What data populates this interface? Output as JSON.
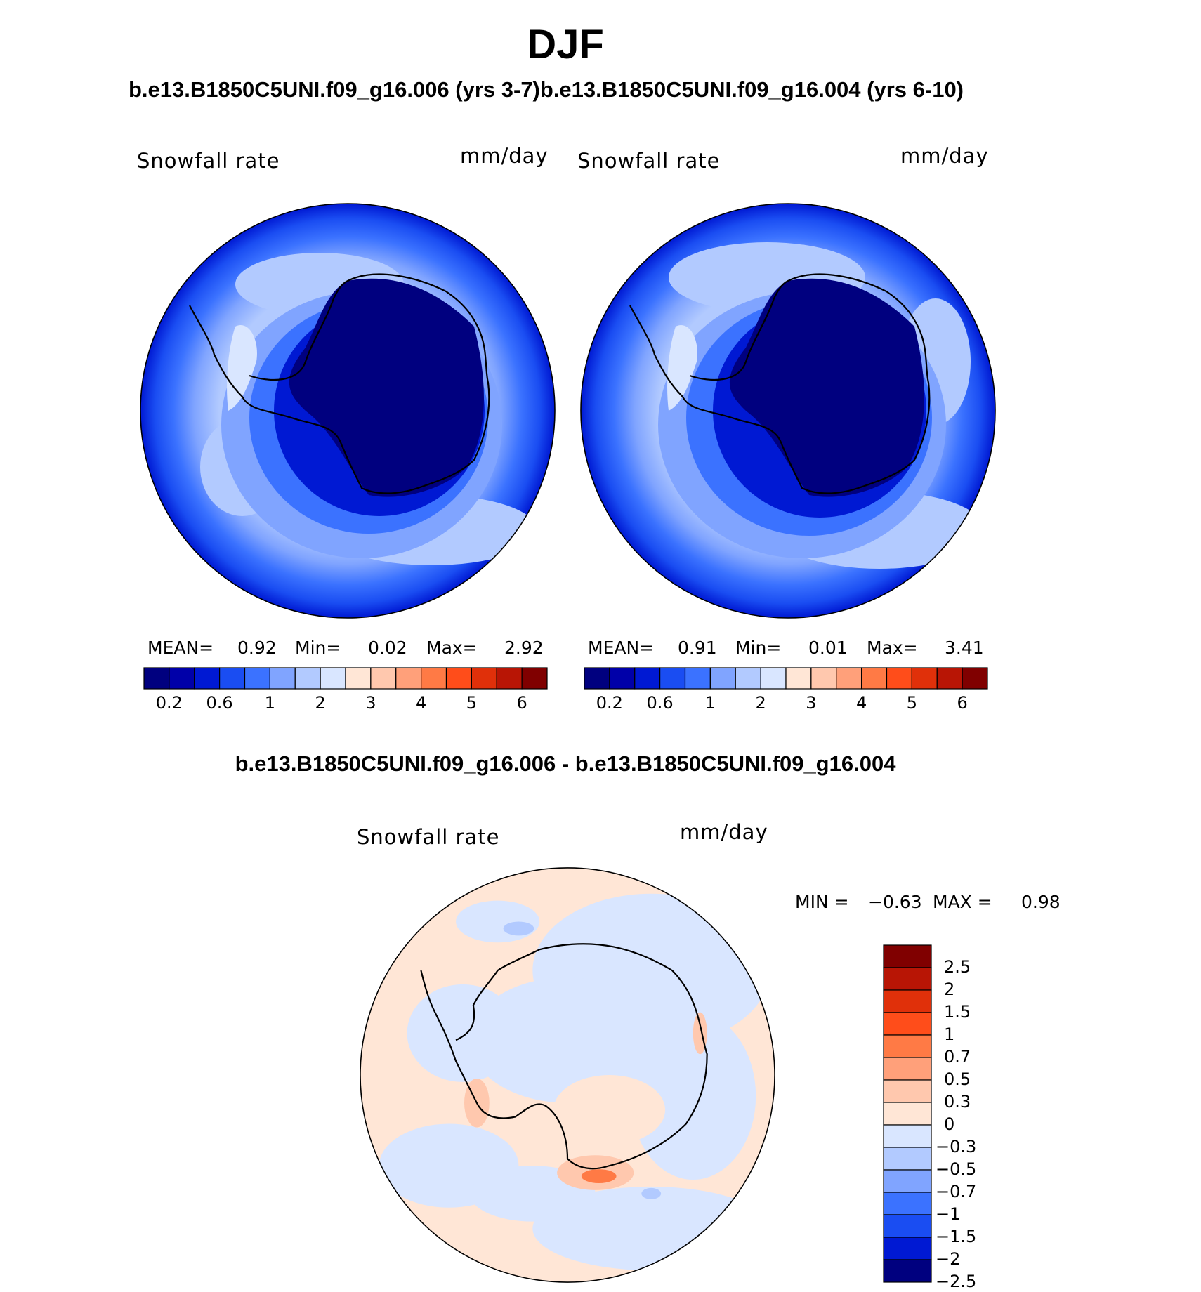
{
  "figure": {
    "title": "DJF",
    "subtitle": "b.e13.B1850C5UNI.f09_g16.006 (yrs 3-7)b.e13.B1850C5UNI.f09_g16.004 (yrs 6-10)",
    "diff_title": "b.e13.B1850C5UNI.f09_g16.006 - b.e13.B1850C5UNI.f09_g16.004"
  },
  "panels": [
    {
      "variable": "Snowfall rate",
      "units": "mm/day",
      "mean_label": "MEAN=",
      "mean": "0.92",
      "min_label": "Min=",
      "min": "0.02",
      "max_label": "Max=",
      "max": "2.92"
    },
    {
      "variable": "Snowfall rate",
      "units": "mm/day",
      "mean_label": "MEAN=",
      "mean": "0.91",
      "min_label": "Min=",
      "min": "0.01",
      "max_label": "Max=",
      "max": "3.41"
    }
  ],
  "diff_panel": {
    "variable": "Snowfall rate",
    "units": "mm/day",
    "min_label": "MIN =",
    "min": "−0.63",
    "max_label": "MAX =",
    "max": "0.98"
  },
  "colorbar_top": {
    "colors": [
      "#00007f",
      "#0000a9",
      "#0019d3",
      "#1a4df2",
      "#3b72ff",
      "#80a4ff",
      "#b2caff",
      "#d9e6ff",
      "#ffe6d6",
      "#ffc8ae",
      "#ffa07a",
      "#ff7a45",
      "#ff4d1a",
      "#e0300a",
      "#b81505",
      "#800000"
    ],
    "tick_labels": [
      "0.2",
      "0.6",
      "1",
      "2",
      "3",
      "4",
      "5",
      "6"
    ]
  },
  "colorbar_diff": {
    "colors": [
      "#800000",
      "#b81505",
      "#e0300a",
      "#ff4d1a",
      "#ff7a45",
      "#ffa07a",
      "#ffc8ae",
      "#ffe6d6",
      "#d9e6ff",
      "#b2caff",
      "#80a4ff",
      "#3b72ff",
      "#1a4df2",
      "#0019d3",
      "#00007f"
    ],
    "tick_labels": [
      "2.5",
      "2",
      "1.5",
      "1",
      "0.7",
      "0.5",
      "0.3",
      "0",
      "−0.3",
      "−0.5",
      "−0.7",
      "−1",
      "−1.5",
      "−2",
      "−2.5"
    ]
  }
}
